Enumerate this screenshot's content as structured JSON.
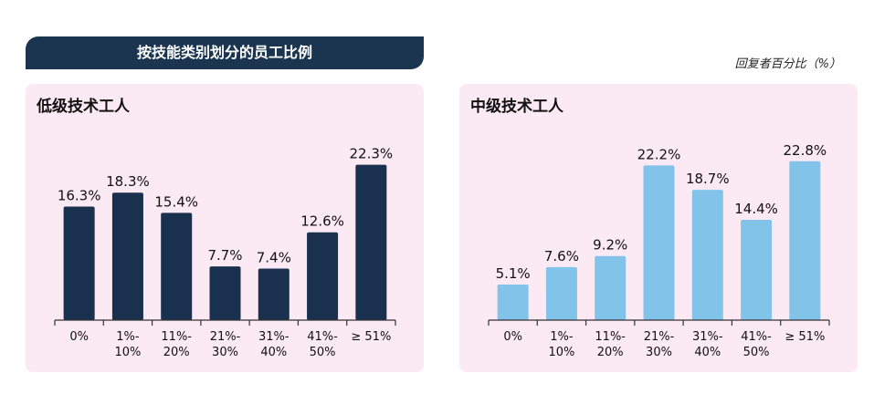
{
  "header": {
    "title": "按技能类别划分的员工比例",
    "unit_note": "回复者百分比（%）"
  },
  "colors": {
    "dark_bar": "#19314f",
    "light_bar": "#82c3ea",
    "banner": "#1b3550",
    "panel_bg": "#fbe9f3",
    "axis": "#333333"
  },
  "chart_data": [
    {
      "type": "bar",
      "title": "低级技术工人",
      "categories": [
        "0%",
        "1%-\n10%",
        "11%-\n20%",
        "21%-\n30%",
        "31%-\n40%",
        "41%-\n50%",
        "≥ 51%"
      ],
      "values": [
        16.3,
        18.3,
        15.4,
        7.7,
        7.4,
        12.6,
        22.3
      ],
      "labels": [
        "16.3%",
        "18.3%",
        "15.4%",
        "7.7%",
        "7.4%",
        "12.6%",
        "22.3%"
      ],
      "ylim": [
        0,
        25
      ],
      "color": "#19314f"
    },
    {
      "type": "bar",
      "title": "中级技术工人",
      "categories": [
        "0%",
        "1%-\n10%",
        "11%-\n20%",
        "21%-\n30%",
        "31%-\n40%",
        "41%-\n50%",
        "≥ 51%"
      ],
      "values": [
        5.1,
        7.6,
        9.2,
        22.2,
        18.7,
        14.4,
        22.8
      ],
      "labels": [
        "5.1%",
        "7.6%",
        "9.2%",
        "22.2%",
        "18.7%",
        "14.4%",
        "22.8%"
      ],
      "ylim": [
        0,
        25
      ],
      "color": "#82c3ea"
    }
  ]
}
